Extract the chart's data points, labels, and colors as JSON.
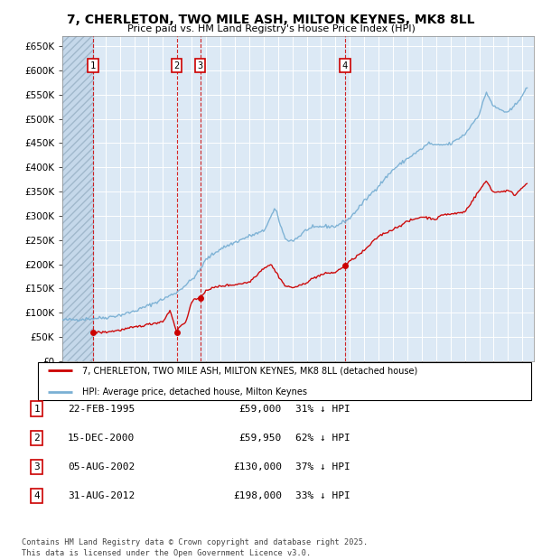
{
  "title": "7, CHERLETON, TWO MILE ASH, MILTON KEYNES, MK8 8LL",
  "subtitle": "Price paid vs. HM Land Registry's House Price Index (HPI)",
  "bg_color": "#dce9f5",
  "grid_color": "#ffffff",
  "ylim": [
    0,
    670000
  ],
  "red_line_color": "#cc0000",
  "blue_line_color": "#7ab0d4",
  "sale_marker_color": "#cc0000",
  "sale_t": [
    1995.15,
    2000.96,
    2002.59,
    2012.67
  ],
  "sale_p": [
    59000,
    59950,
    130000,
    198000
  ],
  "vline_dates": [
    1995.15,
    2000.96,
    2002.59,
    2012.67
  ],
  "label_positions": [
    [
      1995.15,
      610000,
      "1"
    ],
    [
      2000.96,
      610000,
      "2"
    ],
    [
      2002.59,
      610000,
      "3"
    ],
    [
      2012.67,
      610000,
      "4"
    ]
  ],
  "legend_entries": [
    "7, CHERLETON, TWO MILE ASH, MILTON KEYNES, MK8 8LL (detached house)",
    "HPI: Average price, detached house, Milton Keynes"
  ],
  "table_rows": [
    [
      "1",
      "22-FEB-1995",
      "£59,000",
      "31% ↓ HPI"
    ],
    [
      "2",
      "15-DEC-2000",
      "£59,950",
      "62% ↓ HPI"
    ],
    [
      "3",
      "05-AUG-2002",
      "£130,000",
      "37% ↓ HPI"
    ],
    [
      "4",
      "31-AUG-2012",
      "£198,000",
      "33% ↓ HPI"
    ]
  ],
  "footer": "Contains HM Land Registry data © Crown copyright and database right 2025.\nThis data is licensed under the Open Government Licence v3.0."
}
